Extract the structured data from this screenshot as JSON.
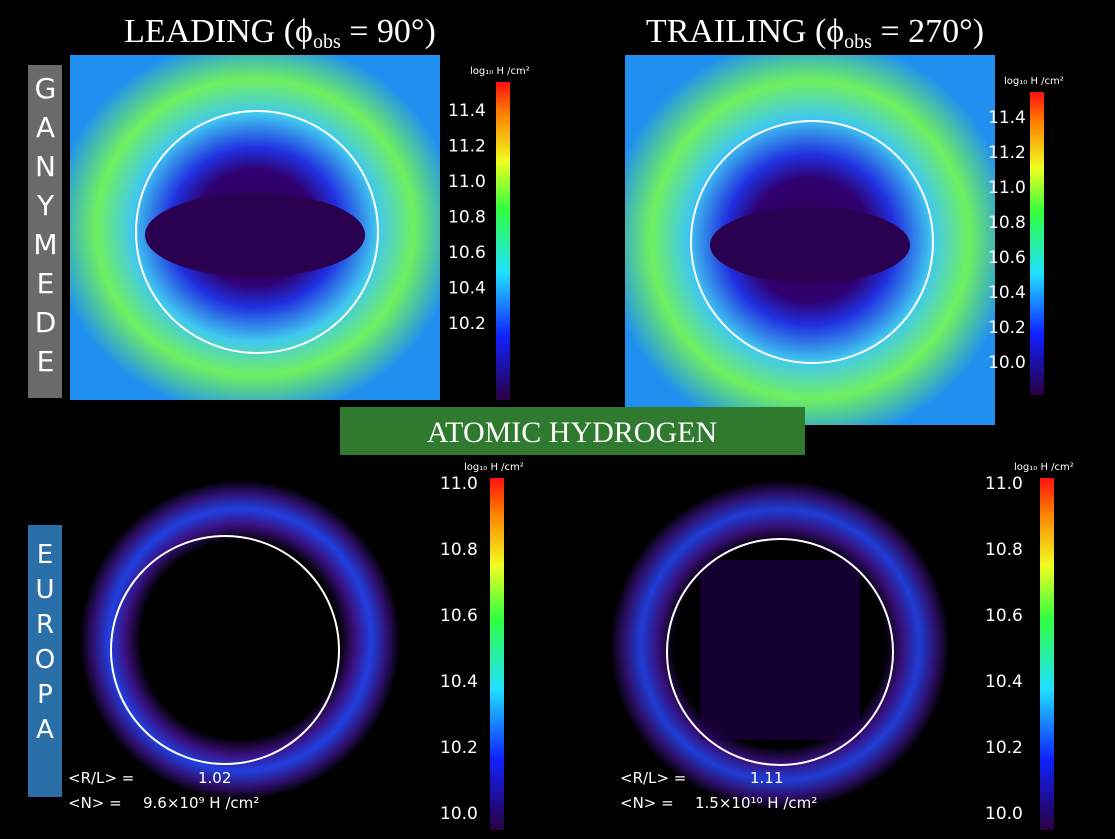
{
  "titles": [
    {
      "prefix": "LEADING (ϕ",
      "subscript": "obs",
      "suffix": " = 90°)"
    },
    {
      "prefix": "TRAILING (ϕ",
      "subscript": "obs",
      "suffix": " = 270°)"
    }
  ],
  "rows": [
    {
      "label": "GANYMEDE"
    },
    {
      "label": "EUROPA"
    }
  ],
  "banner": "ATOMIC HYDROGEN",
  "panels": [
    {
      "unit": "log₁₀ H /cm²",
      "ticks": [
        "11.4",
        "11.2",
        "11.0",
        "10.8",
        "10.6",
        "10.4",
        "10.2"
      ]
    },
    {
      "unit": "log₁₀ H /cm²",
      "ticks": [
        "11.4",
        "11.2",
        "11.0",
        "10.8",
        "10.6",
        "10.4",
        "10.2",
        "10.0"
      ]
    },
    {
      "unit": "log₁₀ H /cm²",
      "ticks": [
        "11.0",
        "10.8",
        "10.6",
        "10.4",
        "10.2",
        "10.0"
      ],
      "ratio_label": "<R/L> =",
      "ratio": "1.02",
      "column_label": "<N> =",
      "column": "9.6×10⁹ H /cm²"
    },
    {
      "unit": "log₁₀ H /cm²",
      "ticks": [
        "11.0",
        "10.8",
        "10.6",
        "10.4",
        "10.2",
        "10.0"
      ],
      "ratio_label": "<R/L> =",
      "ratio": "1.11",
      "column_label": "<N> =",
      "column": "1.5×10¹⁰ H /cm²"
    }
  ]
}
